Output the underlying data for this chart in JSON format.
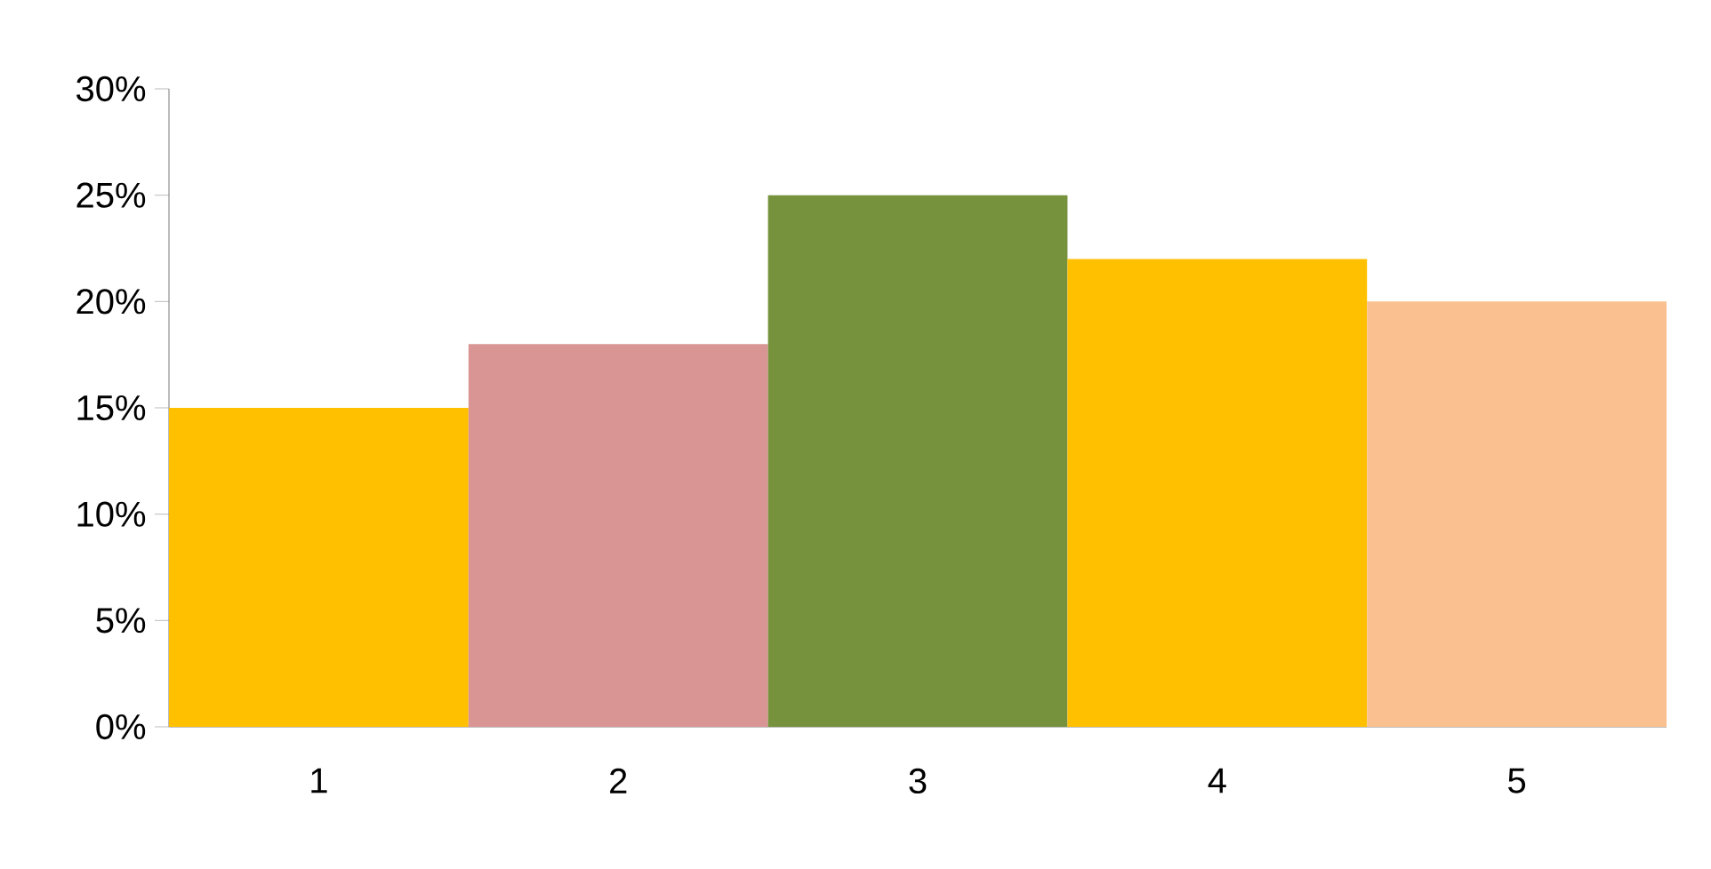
{
  "chart_data": {
    "type": "bar",
    "categories": [
      "1",
      "2",
      "3",
      "4",
      "5"
    ],
    "values": [
      15,
      18,
      25,
      22,
      20
    ],
    "colors": [
      "#ffc000",
      "#d99594",
      "#76923c",
      "#ffc000",
      "#fac090"
    ],
    "ylim": [
      0,
      30
    ],
    "yticks": [
      {
        "value": 0,
        "label": "0%"
      },
      {
        "value": 5,
        "label": "5%"
      },
      {
        "value": 10,
        "label": "10%"
      },
      {
        "value": 15,
        "label": "15%"
      },
      {
        "value": 20,
        "label": "20%"
      },
      {
        "value": 25,
        "label": "25%"
      },
      {
        "value": 30,
        "label": "30%"
      }
    ],
    "grid": false
  }
}
